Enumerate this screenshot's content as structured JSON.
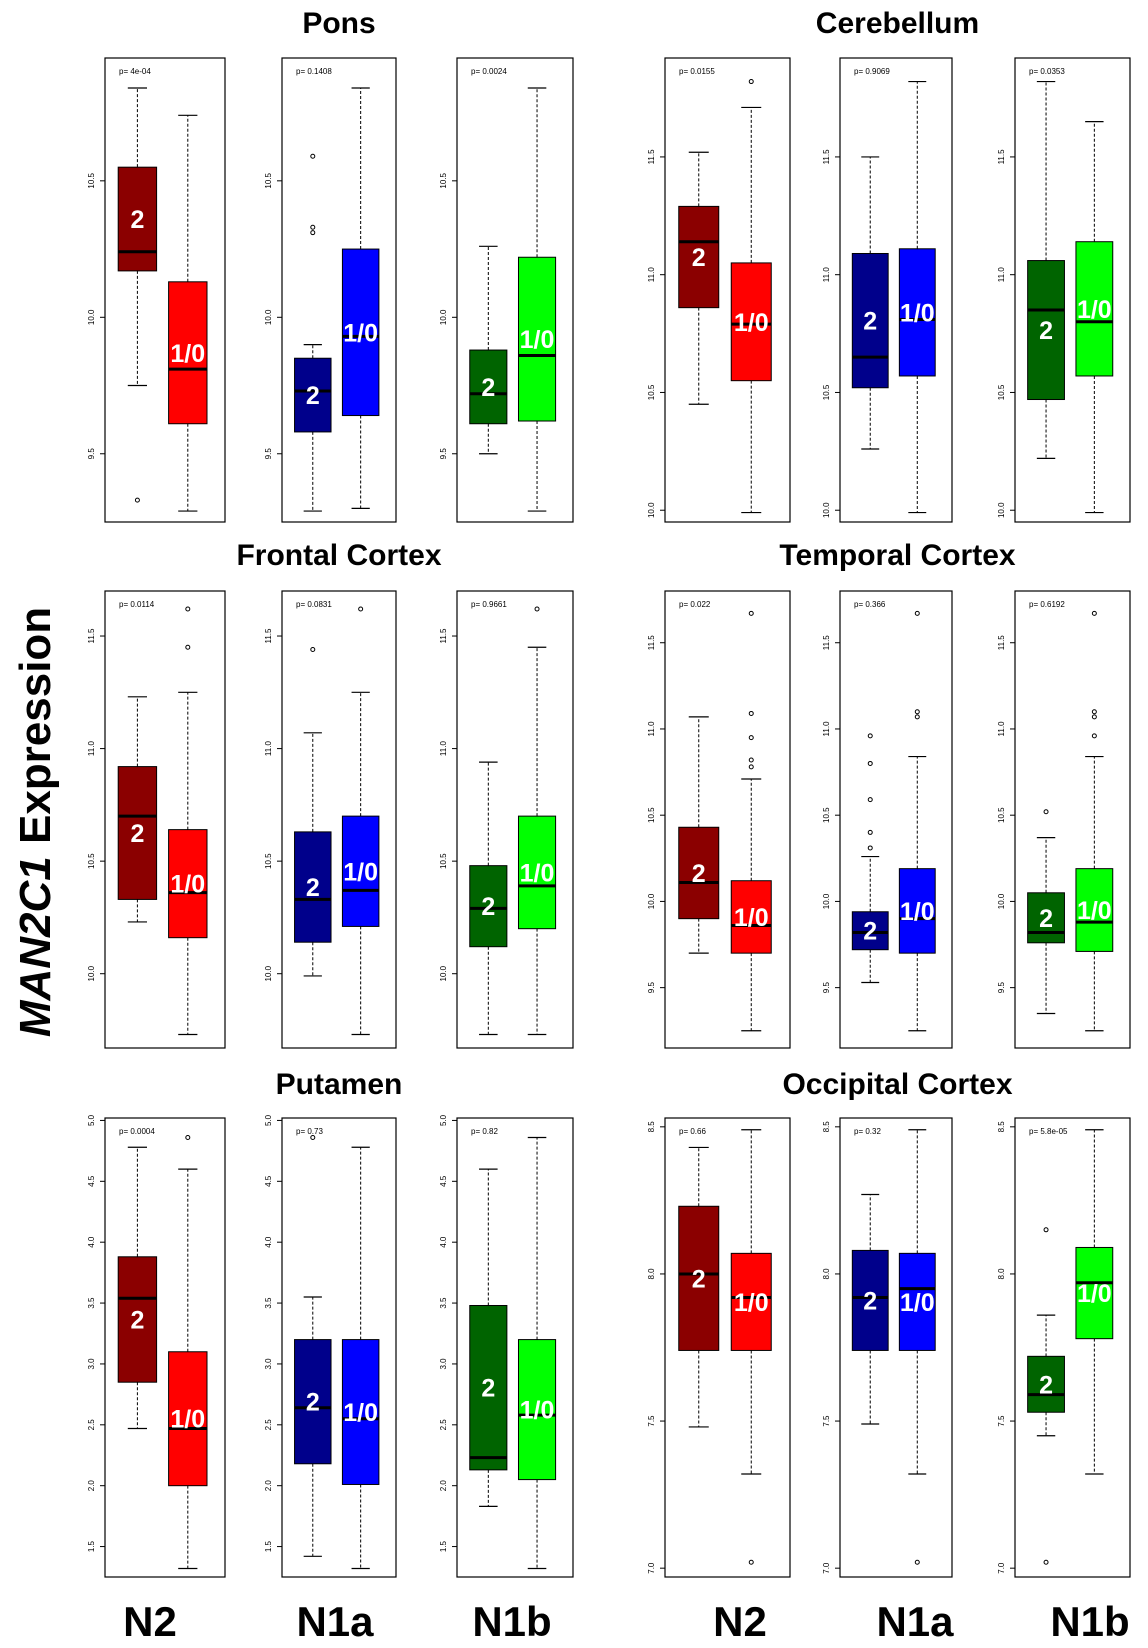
{
  "ylabel": {
    "gene": "MAN2C1",
    "rest": " Expression"
  },
  "x_labels": [
    "N2",
    "N1a",
    "N1b",
    "N2",
    "N1a",
    "N1b"
  ],
  "group_labels": [
    "2",
    "1/0"
  ],
  "colors": {
    "N2": [
      "#8b0000",
      "#ff0000"
    ],
    "N1a": [
      "#00008b",
      "#0000ff"
    ],
    "N1b": [
      "#006400",
      "#00ff00"
    ]
  },
  "chart_data": [
    {
      "type": "box",
      "title": "Pons",
      "yticks": [
        9.5,
        10.0,
        10.5
      ],
      "ylim": [
        9.25,
        10.95
      ],
      "panels": [
        {
          "subtype": "N2",
          "pvalue": "p= 4e-04",
          "boxes": [
            {
              "min": 9.75,
              "q1": 10.17,
              "median": 10.24,
              "q3": 10.55,
              "max": 10.84,
              "outliers": [
                9.33
              ]
            },
            {
              "min": 9.29,
              "q1": 9.61,
              "median": 9.81,
              "q3": 10.13,
              "max": 10.74,
              "outliers": []
            }
          ]
        },
        {
          "subtype": "N1a",
          "pvalue": "p= 0.1408",
          "boxes": [
            {
              "min": 9.29,
              "q1": 9.58,
              "median": 9.73,
              "q3": 9.85,
              "max": 9.9,
              "outliers": [
                10.33,
                10.31,
                10.59
              ]
            },
            {
              "min": 9.3,
              "q1": 9.64,
              "median": 9.93,
              "q3": 10.25,
              "max": 10.84,
              "outliers": []
            }
          ]
        },
        {
          "subtype": "N1b",
          "pvalue": "p= 0.0024",
          "boxes": [
            {
              "min": 9.5,
              "q1": 9.61,
              "median": 9.72,
              "q3": 9.88,
              "max": 10.26,
              "outliers": []
            },
            {
              "min": 9.29,
              "q1": 9.62,
              "median": 9.86,
              "q3": 10.22,
              "max": 10.84,
              "outliers": []
            }
          ]
        }
      ]
    },
    {
      "type": "box",
      "title": "Cerebellum",
      "yticks": [
        10.0,
        10.5,
        11.0,
        11.5
      ],
      "ylim": [
        9.95,
        11.92
      ],
      "panels": [
        {
          "subtype": "N2",
          "pvalue": "p= 0.0155",
          "boxes": [
            {
              "min": 10.45,
              "q1": 10.86,
              "median": 11.14,
              "q3": 11.29,
              "max": 11.52,
              "outliers": []
            },
            {
              "min": 9.99,
              "q1": 10.55,
              "median": 10.79,
              "q3": 11.05,
              "max": 11.71,
              "outliers": [
                11.82
              ]
            }
          ]
        },
        {
          "subtype": "N1a",
          "pvalue": "p= 0.9069",
          "boxes": [
            {
              "min": 10.26,
              "q1": 10.52,
              "median": 10.65,
              "q3": 11.09,
              "max": 11.5,
              "outliers": []
            },
            {
              "min": 9.99,
              "q1": 10.57,
              "median": 10.81,
              "q3": 11.11,
              "max": 11.82,
              "outliers": []
            }
          ]
        },
        {
          "subtype": "N1b",
          "pvalue": "p= 0.0353",
          "boxes": [
            {
              "min": 10.22,
              "q1": 10.47,
              "median": 10.85,
              "q3": 11.06,
              "max": 11.82,
              "outliers": []
            },
            {
              "min": 9.99,
              "q1": 10.57,
              "median": 10.8,
              "q3": 11.14,
              "max": 11.65,
              "outliers": []
            }
          ]
        }
      ]
    },
    {
      "type": "box",
      "title": "Frontal Cortex",
      "yticks": [
        10.0,
        10.5,
        11.0,
        11.5
      ],
      "ylim": [
        9.67,
        11.7
      ],
      "panels": [
        {
          "subtype": "N2",
          "pvalue": "p= 0.0114",
          "boxes": [
            {
              "min": 10.23,
              "q1": 10.33,
              "median": 10.7,
              "q3": 10.92,
              "max": 11.23,
              "outliers": []
            },
            {
              "min": 9.73,
              "q1": 10.16,
              "median": 10.36,
              "q3": 10.64,
              "max": 11.25,
              "outliers": [
                11.45,
                11.62
              ]
            }
          ]
        },
        {
          "subtype": "N1a",
          "pvalue": "p= 0.0831",
          "boxes": [
            {
              "min": 9.99,
              "q1": 10.14,
              "median": 10.33,
              "q3": 10.63,
              "max": 11.07,
              "outliers": [
                11.44
              ]
            },
            {
              "min": 9.73,
              "q1": 10.21,
              "median": 10.37,
              "q3": 10.7,
              "max": 11.25,
              "outliers": [
                11.62
              ]
            }
          ]
        },
        {
          "subtype": "N1b",
          "pvalue": "p= 0.9661",
          "boxes": [
            {
              "min": 9.73,
              "q1": 10.12,
              "median": 10.29,
              "q3": 10.48,
              "max": 10.94,
              "outliers": []
            },
            {
              "min": 9.73,
              "q1": 10.2,
              "median": 10.39,
              "q3": 10.7,
              "max": 11.45,
              "outliers": [
                11.62
              ]
            }
          ]
        }
      ]
    },
    {
      "type": "box",
      "title": "Temporal Cortex",
      "yticks": [
        9.5,
        10.0,
        10.5,
        11.0,
        11.5
      ],
      "ylim": [
        9.15,
        11.8
      ],
      "panels": [
        {
          "subtype": "N2",
          "pvalue": "p= 0.022",
          "boxes": [
            {
              "min": 9.7,
              "q1": 9.9,
              "median": 10.11,
              "q3": 10.43,
              "max": 11.07,
              "outliers": []
            },
            {
              "min": 9.25,
              "q1": 9.7,
              "median": 9.86,
              "q3": 10.12,
              "max": 10.71,
              "outliers": [
                10.78,
                10.82,
                10.95,
                11.09,
                11.67
              ]
            }
          ]
        },
        {
          "subtype": "N1a",
          "pvalue": "p= 0.366",
          "boxes": [
            {
              "min": 9.53,
              "q1": 9.72,
              "median": 9.82,
              "q3": 9.94,
              "max": 10.26,
              "outliers": [
                10.31,
                10.4,
                10.59,
                10.8,
                10.96
              ]
            },
            {
              "min": 9.25,
              "q1": 9.7,
              "median": 9.9,
              "q3": 10.19,
              "max": 10.84,
              "outliers": [
                11.07,
                11.1,
                11.67
              ]
            }
          ]
        },
        {
          "subtype": "N1b",
          "pvalue": "p= 0.6192",
          "boxes": [
            {
              "min": 9.35,
              "q1": 9.76,
              "median": 9.82,
              "q3": 10.05,
              "max": 10.37,
              "outliers": [
                10.52
              ]
            },
            {
              "min": 9.25,
              "q1": 9.71,
              "median": 9.88,
              "q3": 10.19,
              "max": 10.84,
              "outliers": [
                10.96,
                11.07,
                11.1,
                11.67
              ]
            }
          ]
        }
      ]
    },
    {
      "type": "box",
      "title": "Putamen",
      "yticks": [
        1.5,
        2.0,
        2.5,
        3.0,
        3.5,
        4.0,
        4.5,
        5.0
      ],
      "ylim": [
        1.25,
        5.02
      ],
      "panels": [
        {
          "subtype": "N2",
          "pvalue": "p= 0.0004",
          "boxes": [
            {
              "min": 2.47,
              "q1": 2.85,
              "median": 3.54,
              "q3": 3.88,
              "max": 4.78,
              "outliers": []
            },
            {
              "min": 1.32,
              "q1": 2.0,
              "median": 2.47,
              "q3": 3.1,
              "max": 4.6,
              "outliers": [
                4.86
              ]
            }
          ]
        },
        {
          "subtype": "N1a",
          "pvalue": "p= 0.73",
          "boxes": [
            {
              "min": 1.42,
              "q1": 2.18,
              "median": 2.64,
              "q3": 3.2,
              "max": 3.55,
              "outliers": [
                4.86
              ]
            },
            {
              "min": 1.32,
              "q1": 2.01,
              "median": 2.55,
              "q3": 3.2,
              "max": 4.78,
              "outliers": []
            }
          ]
        },
        {
          "subtype": "N1b",
          "pvalue": "p= 0.82",
          "boxes": [
            {
              "min": 1.83,
              "q1": 2.13,
              "median": 2.23,
              "q3": 3.48,
              "max": 4.6,
              "outliers": []
            },
            {
              "min": 1.32,
              "q1": 2.05,
              "median": 2.58,
              "q3": 3.2,
              "max": 4.86,
              "outliers": []
            }
          ]
        }
      ]
    },
    {
      "type": "box",
      "title": "Occipital Cortex",
      "yticks": [
        7.0,
        7.5,
        8.0,
        8.5
      ],
      "ylim": [
        6.97,
        8.53
      ],
      "panels": [
        {
          "subtype": "N2",
          "pvalue": "p= 0.66",
          "boxes": [
            {
              "min": 7.48,
              "q1": 7.74,
              "median": 8.0,
              "q3": 8.23,
              "max": 8.43,
              "outliers": []
            },
            {
              "min": 7.32,
              "q1": 7.74,
              "median": 7.92,
              "q3": 8.07,
              "max": 8.49,
              "outliers": [
                7.02
              ]
            }
          ]
        },
        {
          "subtype": "N1a",
          "pvalue": "p= 0.32",
          "boxes": [
            {
              "min": 7.49,
              "q1": 7.74,
              "median": 7.92,
              "q3": 8.08,
              "max": 8.27,
              "outliers": []
            },
            {
              "min": 7.32,
              "q1": 7.74,
              "median": 7.95,
              "q3": 8.07,
              "max": 8.49,
              "outliers": [
                7.02
              ]
            }
          ]
        },
        {
          "subtype": "N1b",
          "pvalue": "p= 5.8e-05",
          "boxes": [
            {
              "min": 7.45,
              "q1": 7.53,
              "median": 7.59,
              "q3": 7.72,
              "max": 7.86,
              "outliers": [
                8.15,
                7.02
              ]
            },
            {
              "min": 7.32,
              "q1": 7.78,
              "median": 7.97,
              "q3": 8.09,
              "max": 8.49,
              "outliers": []
            }
          ]
        }
      ]
    }
  ]
}
